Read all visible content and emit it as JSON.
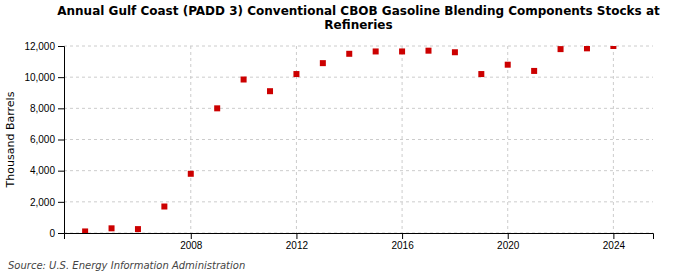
{
  "chart_data": {
    "type": "scatter",
    "title": "Annual Gulf Coast (PADD 3) Conventional CBOB Gasoline Blending Components Stocks at\nRefineries",
    "ylabel": "Thousand Barrels",
    "source": "Source: U.S. Energy Information Administration",
    "x": [
      2004,
      2005,
      2006,
      2007,
      2008,
      2009,
      2010,
      2011,
      2012,
      2013,
      2014,
      2015,
      2016,
      2017,
      2018,
      2019,
      2020,
      2021,
      2022,
      2023,
      2024
    ],
    "values": [
      100,
      300,
      250,
      1700,
      3800,
      8000,
      9850,
      9100,
      10200,
      10900,
      11500,
      11650,
      11650,
      11700,
      11600,
      10200,
      10800,
      10400,
      11800,
      11850,
      12000
    ],
    "color": "#cc0000",
    "marker": "square",
    "grid": true,
    "xlim": [
      2003.2,
      2025.5
    ],
    "xticks": [
      2008,
      2012,
      2016,
      2020,
      2024
    ],
    "ylim": [
      0,
      12000
    ],
    "yticks": [
      0,
      {
        "value": 2000,
        "label": "2,000"
      },
      {
        "value": 4000,
        "label": "4,000"
      },
      {
        "value": 6000,
        "label": "6,000"
      },
      {
        "value": 8000,
        "label": "8,000"
      },
      {
        "value": 10000,
        "label": "10,000"
      },
      {
        "value": 12000,
        "label": "12,000"
      }
    ]
  }
}
